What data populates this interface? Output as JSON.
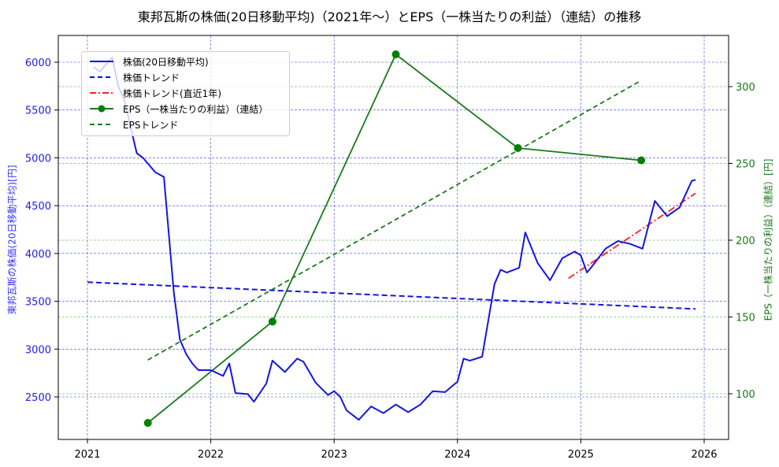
{
  "title": "東邦瓦斯の株価(20日移動平均)（2021年〜）とEPS（一株当たりの利益）（連結）の推移",
  "axes": {
    "left_label": "東邦瓦斯の株価(20日移動平均)[円]",
    "right_label": "EPS（一株当たりの利益）（連結）[円]",
    "x_ticks": [
      "2021",
      "2022",
      "2023",
      "2024",
      "2025",
      "2026"
    ],
    "left_ticks": [
      "2500",
      "3000",
      "3500",
      "4000",
      "4500",
      "5000",
      "5500",
      "6000"
    ],
    "right_ticks": [
      "100",
      "150",
      "200",
      "250",
      "300"
    ]
  },
  "legend": [
    {
      "label": "株価(20日移動平均)",
      "color": "#0000ff",
      "style": "solid"
    },
    {
      "label": "株価トレンド",
      "color": "#0000ff",
      "style": "dashed"
    },
    {
      "label": "株価トレンド(直近1年)",
      "color": "#ff0000",
      "style": "dashdot"
    },
    {
      "label": "EPS（一株当たりの利益）（連結）",
      "color": "#008000",
      "style": "solid-marker"
    },
    {
      "label": "EPSトレンド",
      "color": "#008000",
      "style": "dashed"
    }
  ],
  "chart_data": {
    "type": "line",
    "title": "東邦瓦斯の株価(20日移動平均)（2021年〜）とEPS（一株当たりの利益）（連結）の推移",
    "xlabel": "",
    "ylabel": "東邦瓦斯の株価(20日移動平均)[円]",
    "ylabel_right": "EPS（一株当たりの利益）（連結）[円]",
    "xlim": [
      2020.76,
      2026.2
    ],
    "ylim": [
      2130,
      6270
    ],
    "ylim_right": [
      70,
      330
    ],
    "grid": true,
    "legend_position": "upper left",
    "series": [
      {
        "name": "株価(20日移動平均)",
        "axis": "left",
        "x": [
          2021.05,
          2021.1,
          2021.2,
          2021.25,
          2021.3,
          2021.4,
          2021.45,
          2021.55,
          2021.62,
          2021.7,
          2021.75,
          2021.8,
          2021.85,
          2021.9,
          2022.0,
          2022.1,
          2022.15,
          2022.2,
          2022.3,
          2022.35,
          2022.45,
          2022.5,
          2022.6,
          2022.7,
          2022.75,
          2022.85,
          2022.95,
          2023.0,
          2023.05,
          2023.1,
          2023.2,
          2023.3,
          2023.4,
          2023.5,
          2023.6,
          2023.7,
          2023.8,
          2023.9,
          2024.0,
          2024.05,
          2024.1,
          2024.2,
          2024.3,
          2024.35,
          2024.4,
          2024.5,
          2024.55,
          2024.65,
          2024.75,
          2024.85,
          2024.95,
          2025.0,
          2025.05,
          2025.1,
          2025.2,
          2025.3,
          2025.4,
          2025.5,
          2025.6,
          2025.7,
          2025.8,
          2025.9,
          2025.93
        ],
        "values": [
          5950,
          5900,
          6050,
          5750,
          5600,
          5050,
          5000,
          4850,
          4800,
          3600,
          3100,
          2950,
          2850,
          2780,
          2780,
          2720,
          2850,
          2540,
          2530,
          2450,
          2640,
          2880,
          2760,
          2900,
          2870,
          2650,
          2520,
          2560,
          2500,
          2360,
          2260,
          2400,
          2330,
          2420,
          2340,
          2420,
          2560,
          2550,
          2660,
          2900,
          2880,
          2920,
          3680,
          3830,
          3800,
          3850,
          4220,
          3900,
          3720,
          3950,
          4020,
          3980,
          3800,
          3880,
          4050,
          4130,
          4100,
          4050,
          4550,
          4390,
          4480,
          4760,
          4770
        ]
      },
      {
        "name": "株価トレンド",
        "axis": "left",
        "x": [
          2021.0,
          2025.93
        ],
        "values": [
          3700,
          3420
        ]
      },
      {
        "name": "株価トレンド(直近1年)",
        "axis": "left",
        "x": [
          2024.9,
          2025.93
        ],
        "values": [
          3740,
          4630
        ]
      },
      {
        "name": "EPS（一株当たりの利益）（連結）",
        "axis": "right",
        "x": [
          2021.49,
          2022.5,
          2023.5,
          2024.49,
          2025.49
        ],
        "values": [
          81,
          147,
          321,
          260,
          252
        ]
      },
      {
        "name": "EPSトレンド",
        "axis": "right",
        "x": [
          2021.49,
          2025.49
        ],
        "values": [
          122,
          304
        ]
      }
    ]
  }
}
